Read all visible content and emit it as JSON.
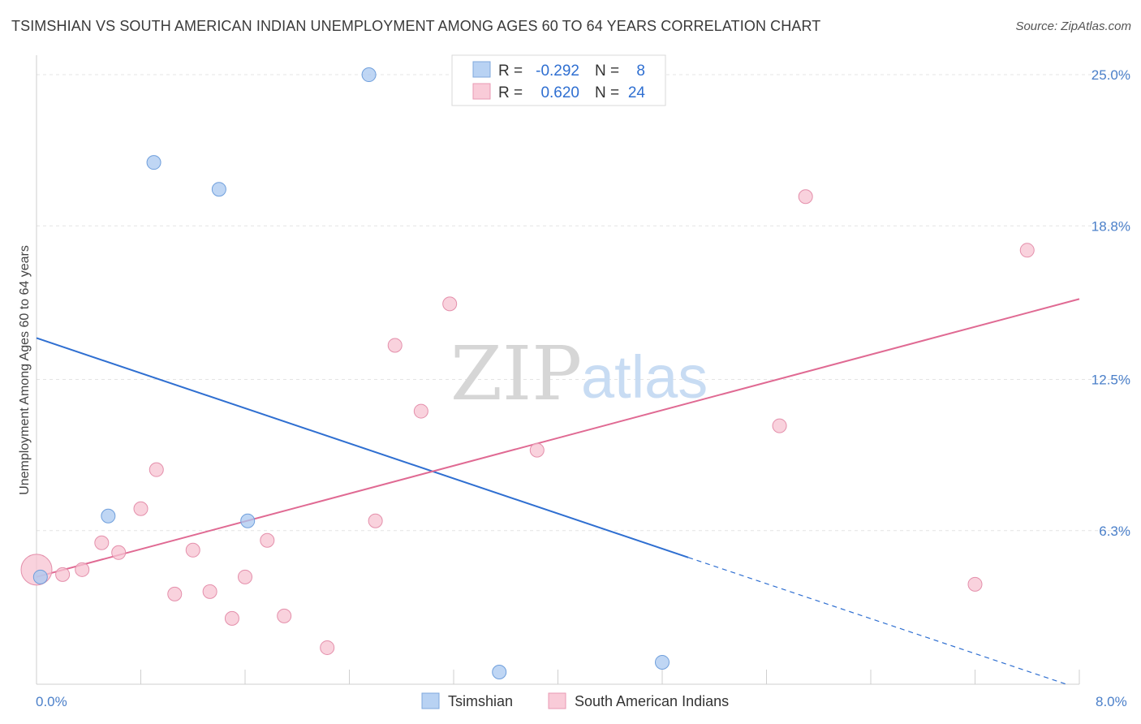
{
  "chart_data": {
    "type": "scatter",
    "title": "TSIMSHIAN VS SOUTH AMERICAN INDIAN UNEMPLOYMENT AMONG AGES 60 TO 64 YEARS CORRELATION CHART",
    "source": "Source: ZipAtlas.com",
    "xlabel": "",
    "ylabel": "Unemployment Among Ages 60 to 64 years",
    "xlim": [
      0,
      8
    ],
    "ylim": [
      0,
      25.8
    ],
    "x_tick_labels": [
      "0.0%",
      "8.0%"
    ],
    "y_ticks": [
      6.3,
      12.5,
      18.8,
      25.0
    ],
    "y_tick_labels": [
      "6.3%",
      "12.5%",
      "18.8%",
      "25.0%"
    ],
    "watermark": {
      "part1": "ZIP",
      "part2": "atlas"
    },
    "legend": {
      "r_label": "R =",
      "n_label": "N =",
      "entries": [
        {
          "r": "-0.292",
          "n": "8"
        },
        {
          "r": "0.620",
          "n": "24"
        }
      ]
    },
    "series": [
      {
        "name": "Tsimshian",
        "color": "#a9c8f0",
        "stroke": "#6f9fdc",
        "line_color": "#2f6fd1",
        "trend": {
          "x0": 0.0,
          "y0": 14.2,
          "x1": 5.0,
          "y1": 5.2,
          "dash_to_x": 7.9,
          "dash_to_y": 0.0
        },
        "points": [
          {
            "x": 0.03,
            "y": 4.4
          },
          {
            "x": 0.55,
            "y": 6.9
          },
          {
            "x": 0.9,
            "y": 21.4
          },
          {
            "x": 1.4,
            "y": 20.3
          },
          {
            "x": 1.62,
            "y": 6.7
          },
          {
            "x": 2.55,
            "y": 25.0
          },
          {
            "x": 3.55,
            "y": 0.5
          },
          {
            "x": 4.8,
            "y": 0.9
          }
        ]
      },
      {
        "name": "South American Indians",
        "color": "#f7c3d2",
        "stroke": "#e48fab",
        "line_color": "#e06a93",
        "trend": {
          "x0": 0.0,
          "y0": 4.4,
          "x1": 8.0,
          "y1": 15.8
        },
        "points": [
          {
            "x": 0.0,
            "y": 4.7,
            "big": true
          },
          {
            "x": 0.2,
            "y": 4.5
          },
          {
            "x": 0.35,
            "y": 4.7
          },
          {
            "x": 0.5,
            "y": 5.8
          },
          {
            "x": 0.63,
            "y": 5.4
          },
          {
            "x": 0.8,
            "y": 7.2
          },
          {
            "x": 0.92,
            "y": 8.8
          },
          {
            "x": 1.06,
            "y": 3.7
          },
          {
            "x": 1.2,
            "y": 5.5
          },
          {
            "x": 1.33,
            "y": 3.8
          },
          {
            "x": 1.5,
            "y": 2.7
          },
          {
            "x": 1.6,
            "y": 4.4
          },
          {
            "x": 1.77,
            "y": 5.9
          },
          {
            "x": 1.9,
            "y": 2.8
          },
          {
            "x": 2.23,
            "y": 1.5
          },
          {
            "x": 2.6,
            "y": 6.7
          },
          {
            "x": 2.75,
            "y": 13.9
          },
          {
            "x": 2.95,
            "y": 11.2
          },
          {
            "x": 3.17,
            "y": 15.6
          },
          {
            "x": 3.84,
            "y": 9.6
          },
          {
            "x": 5.7,
            "y": 10.6
          },
          {
            "x": 5.9,
            "y": 20.0
          },
          {
            "x": 7.2,
            "y": 4.1
          },
          {
            "x": 7.6,
            "y": 17.8
          }
        ]
      }
    ]
  }
}
